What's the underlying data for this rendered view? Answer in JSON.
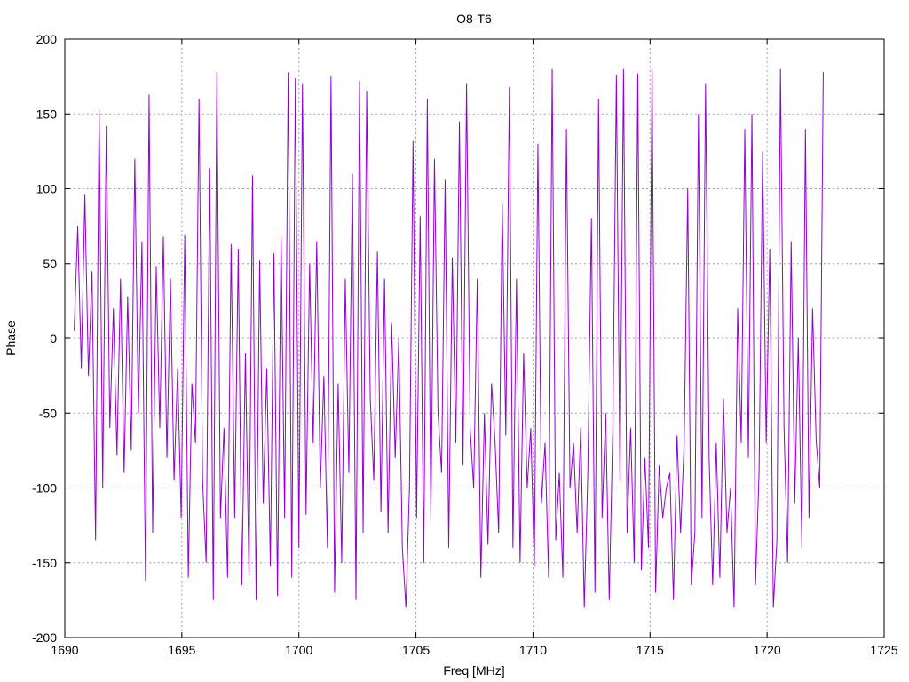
{
  "chart_data": {
    "type": "line",
    "title": "O8-T6",
    "xlabel": "Freq [MHz]",
    "ylabel": "Phase",
    "xlim": [
      1690,
      1725
    ],
    "ylim": [
      -200,
      200
    ],
    "xticks": [
      1690,
      1695,
      1700,
      1705,
      1710,
      1715,
      1720,
      1725
    ],
    "yticks": [
      -200,
      -150,
      -100,
      -50,
      0,
      50,
      100,
      150,
      200
    ],
    "grid": true,
    "legend": "none",
    "series": [
      {
        "color": "#9400d3",
        "x_start": 1690.4,
        "x_end": 1722.4,
        "y": [
          5,
          75,
          -20,
          96,
          -25,
          45,
          -135,
          153,
          -100,
          142,
          -60,
          20,
          -78,
          40,
          -90,
          28,
          -75,
          120,
          -50,
          65,
          -162,
          163,
          -130,
          48,
          -60,
          68,
          -80,
          40,
          -95,
          -20,
          -120,
          69,
          -160,
          -30,
          -70,
          160,
          -95,
          -150,
          114,
          -175,
          178,
          -120,
          -60,
          -160,
          63,
          -120,
          60,
          -165,
          -10,
          -158,
          109,
          -175,
          52,
          -110,
          -20,
          -152,
          57,
          -172,
          68,
          -120,
          178,
          -160,
          174,
          -140,
          170,
          -118,
          50,
          -70,
          65,
          -100,
          -25,
          -140,
          175,
          -170,
          -30,
          -150,
          40,
          -90,
          110,
          -175,
          172,
          -130,
          165,
          -40,
          -95,
          58,
          -116,
          40,
          -130,
          10,
          -80,
          0,
          -140,
          -180,
          -100,
          132,
          -120,
          82,
          -150,
          160,
          -122,
          120,
          -50,
          -90,
          106,
          -140,
          54,
          -70,
          145,
          -85,
          170,
          -60,
          -100,
          40,
          -160,
          -50,
          -138,
          -30,
          -70,
          -130,
          90,
          -65,
          168,
          -140,
          40,
          -150,
          -10,
          -100,
          -60,
          -152,
          130,
          -110,
          -70,
          -160,
          180,
          -135,
          -90,
          -160,
          140,
          -100,
          -70,
          -130,
          -60,
          -180,
          -90,
          80,
          -170,
          160,
          -120,
          -50,
          -175,
          -60,
          176,
          -95,
          180,
          -130,
          -60,
          -150,
          177,
          -155,
          -80,
          -140,
          180,
          -170,
          -85,
          -120,
          -100,
          -90,
          -175,
          -65,
          -130,
          -70,
          100,
          -165,
          -130,
          150,
          -120,
          170,
          -80,
          -165,
          -70,
          -160,
          -40,
          -130,
          -100,
          -180,
          20,
          -70,
          140,
          -80,
          150,
          -165,
          -90,
          125,
          -70,
          60,
          -180,
          -135,
          180,
          -60,
          -150,
          65,
          -110,
          0,
          -140,
          140,
          -120,
          20,
          -68,
          -100,
          178
        ]
      }
    ]
  }
}
